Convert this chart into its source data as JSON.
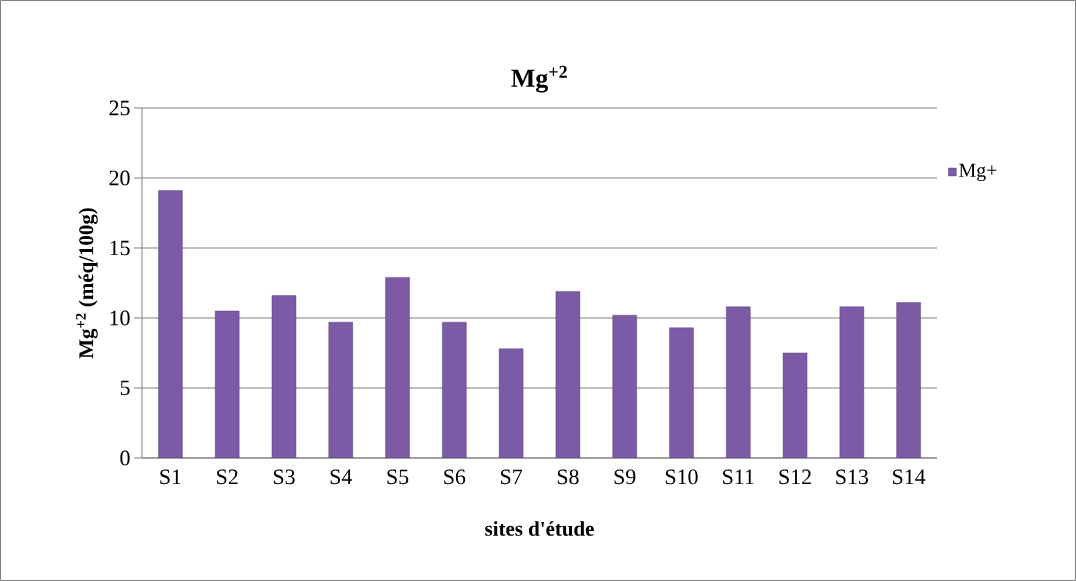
{
  "chart_data": {
    "type": "bar",
    "title": "Mg$^{+2}$",
    "xlabel": "sites d'étude",
    "ylabel": "Mg$^{+2}$ (méq/100g)",
    "categories": [
      "S1",
      "S2",
      "S3",
      "S4",
      "S5",
      "S6",
      "S7",
      "S8",
      "S9",
      "S10",
      "S11",
      "S12",
      "S13",
      "S14"
    ],
    "series": [
      {
        "name": "Mg+",
        "color": "#7b5aa6",
        "values": [
          19.1,
          10.5,
          11.6,
          9.7,
          12.9,
          9.7,
          7.8,
          11.9,
          10.2,
          9.3,
          10.8,
          7.5,
          10.8,
          11.1
        ]
      }
    ],
    "ylim": [
      0,
      25
    ],
    "yticks": [
      0,
      5,
      10,
      15,
      20,
      25
    ],
    "grid": "y",
    "legend": "right"
  }
}
